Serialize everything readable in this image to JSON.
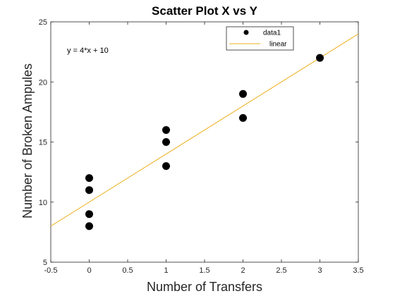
{
  "chart_data": {
    "type": "scatter",
    "title": "Scatter Plot X vs Y",
    "xlabel": "Number of Transfers",
    "ylabel": "Number of Broken Ampules",
    "xlim": [
      -0.5,
      3.5
    ],
    "ylim": [
      5,
      25
    ],
    "x_ticks": [
      -0.5,
      0,
      0.5,
      1,
      1.5,
      2,
      2.5,
      3,
      3.5
    ],
    "x_tick_labels": [
      "-0.5",
      "0",
      "0.5",
      "1",
      "1.5",
      "2",
      "2.5",
      "3",
      "3.5"
    ],
    "y_ticks": [
      5,
      10,
      15,
      20,
      25
    ],
    "y_tick_labels": [
      "5",
      "10",
      "15",
      "20",
      "25"
    ],
    "grid": false,
    "legend_position": "top-right",
    "annotation": "y = 4*x + 10",
    "series": [
      {
        "name": "data1",
        "kind": "scatter",
        "color": "#000000",
        "points": [
          {
            "x": 0,
            "y": 12
          },
          {
            "x": 0,
            "y": 11
          },
          {
            "x": 0,
            "y": 9
          },
          {
            "x": 0,
            "y": 8
          },
          {
            "x": 1,
            "y": 16
          },
          {
            "x": 1,
            "y": 15
          },
          {
            "x": 1,
            "y": 13
          },
          {
            "x": 2,
            "y": 19
          },
          {
            "x": 2,
            "y": 17
          },
          {
            "x": 3,
            "y": 22
          }
        ]
      },
      {
        "name": "linear",
        "kind": "line",
        "color": "#EDB120",
        "slope": 4,
        "intercept": 10,
        "x_range": [
          -0.5,
          3.5
        ]
      }
    ]
  }
}
